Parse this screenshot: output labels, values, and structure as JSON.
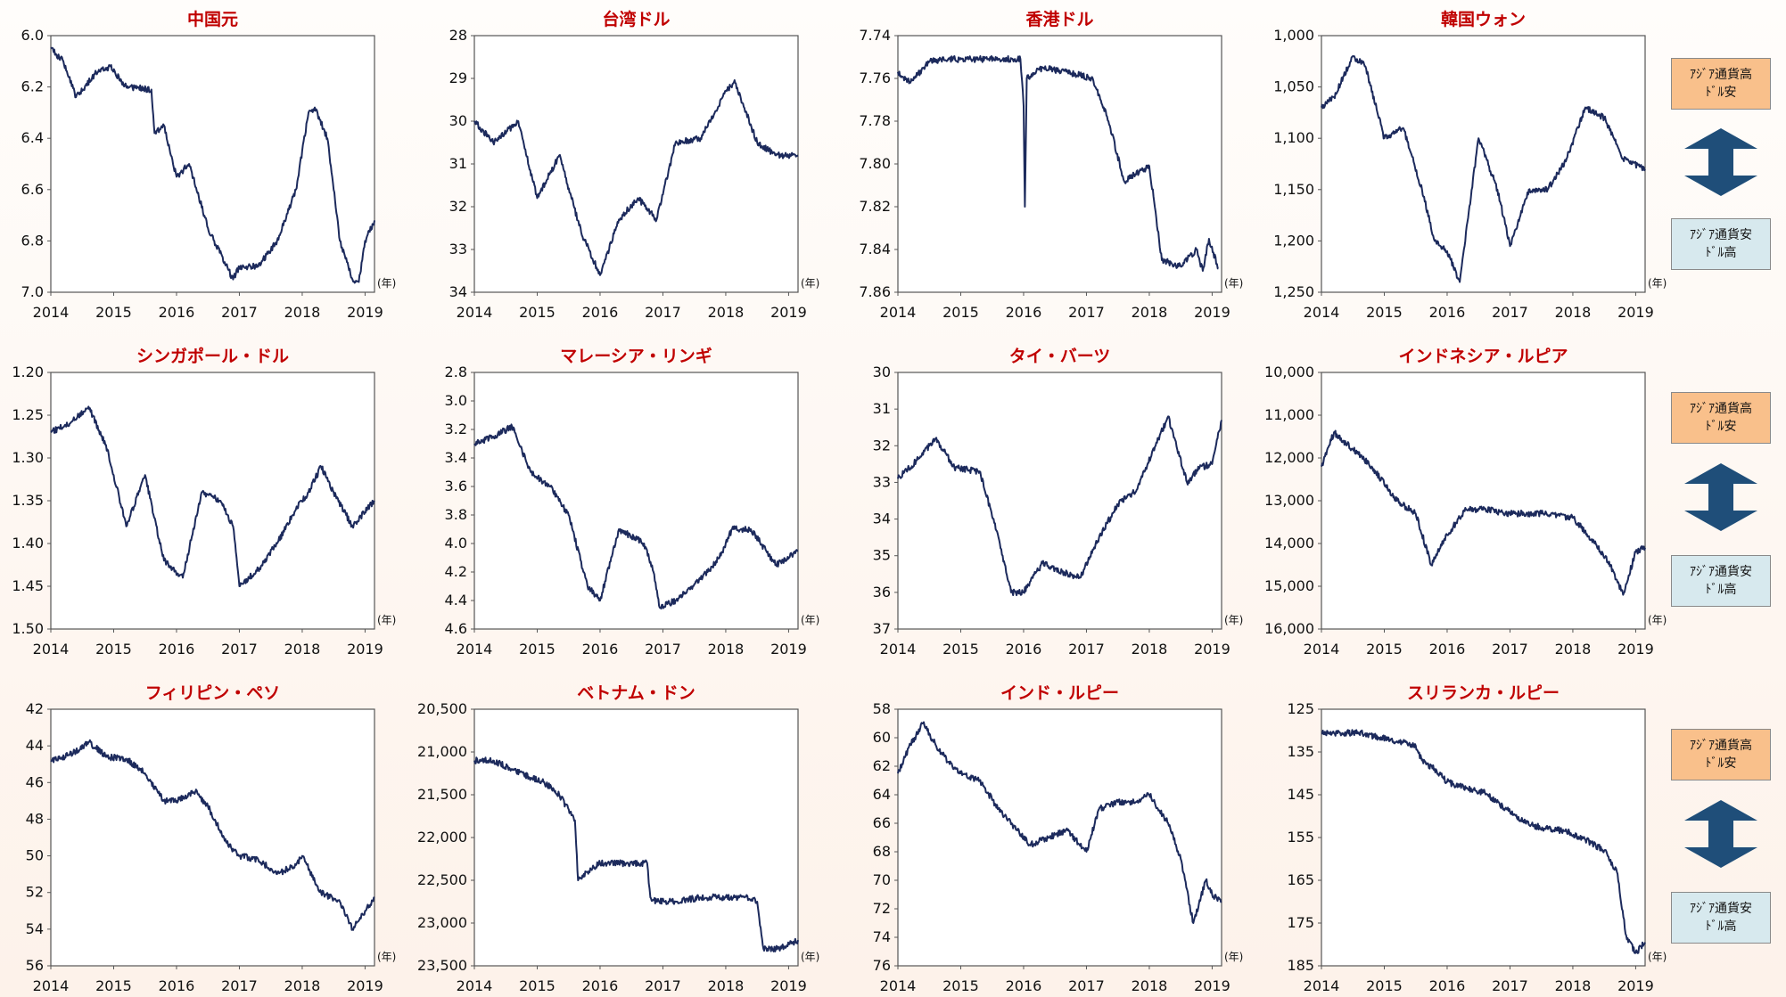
{
  "unit_label": "(年)",
  "legend": {
    "strong_label_1": "ｱｼﾞｱ通貨高",
    "strong_label_2": "ﾄﾞﾙ安",
    "weak_label_1": "ｱｼﾞｱ通貨安",
    "weak_label_2": "ﾄﾞﾙ高",
    "arrow_color": "#1f4e79",
    "strong_color": "#f9c08b",
    "weak_color": "#d7e9ee"
  },
  "line_color": "#1c2a5c",
  "title_color": "#c00000",
  "chart_data": [
    {
      "type": "line",
      "title": "中国元",
      "x": [
        2014,
        2014.2,
        2014.4,
        2014.7,
        2014.95,
        2015.2,
        2015.6,
        2015.65,
        2015.8,
        2016.0,
        2016.2,
        2016.5,
        2016.9,
        2017.0,
        2017.3,
        2017.6,
        2017.9,
        2018.1,
        2018.2,
        2018.4,
        2018.6,
        2018.8,
        2018.9,
        2019.0,
        2019.15
      ],
      "y": [
        6.05,
        6.1,
        6.24,
        6.15,
        6.12,
        6.2,
        6.21,
        6.38,
        6.35,
        6.55,
        6.5,
        6.75,
        6.95,
        6.9,
        6.9,
        6.8,
        6.6,
        6.3,
        6.28,
        6.4,
        6.8,
        6.95,
        6.96,
        6.8,
        6.72
      ],
      "ylim": [
        6.0,
        7.0
      ],
      "yticks": [
        "6.0",
        "6.2",
        "6.4",
        "6.6",
        "6.8",
        "7.0"
      ],
      "xlim": [
        2014,
        2019.15
      ],
      "xticks": [
        "2014",
        "2015",
        "2016",
        "2017",
        "2018",
        "2019"
      ],
      "inverted": true
    },
    {
      "type": "line",
      "title": "台湾ドル",
      "x": [
        2014,
        2014.3,
        2014.7,
        2015.0,
        2015.35,
        2015.7,
        2016.0,
        2016.3,
        2016.6,
        2016.9,
        2017.2,
        2017.6,
        2018.0,
        2018.15,
        2018.5,
        2018.8,
        2019.15
      ],
      "y": [
        30.0,
        30.5,
        30.0,
        31.8,
        30.8,
        32.6,
        33.6,
        32.3,
        31.8,
        32.3,
        30.5,
        30.4,
        29.3,
        29.1,
        30.5,
        30.8,
        30.8
      ],
      "ylim": [
        28,
        34
      ],
      "yticks": [
        "28",
        "29",
        "30",
        "31",
        "32",
        "33",
        "34"
      ],
      "xlim": [
        2014,
        2019.15
      ],
      "xticks": [
        "2014",
        "2015",
        "2016",
        "2017",
        "2018",
        "2019"
      ],
      "inverted": true
    },
    {
      "type": "line",
      "title": "香港ドル",
      "x": [
        2014,
        2014.2,
        2014.5,
        2014.8,
        2015.2,
        2015.6,
        2015.95,
        2016.0,
        2016.02,
        2016.05,
        2016.3,
        2016.7,
        2017.1,
        2017.35,
        2017.6,
        2018.0,
        2018.2,
        2018.5,
        2018.75,
        2018.85,
        2018.95,
        2019.1
      ],
      "y": [
        7.757,
        7.762,
        7.752,
        7.751,
        7.751,
        7.751,
        7.751,
        7.773,
        7.82,
        7.76,
        7.755,
        7.757,
        7.76,
        7.78,
        7.808,
        7.801,
        7.845,
        7.848,
        7.84,
        7.85,
        7.835,
        7.849
      ],
      "ylim": [
        7.74,
        7.86
      ],
      "yticks": [
        "7.74",
        "7.76",
        "7.78",
        "7.80",
        "7.82",
        "7.84",
        "7.86"
      ],
      "xlim": [
        2014,
        2019.15
      ],
      "xticks": [
        "2014",
        "2015",
        "2016",
        "2017",
        "2018",
        "2019"
      ],
      "inverted": true
    },
    {
      "type": "line",
      "title": "韓国ウォン",
      "x": [
        2014,
        2014.2,
        2014.5,
        2014.7,
        2015.0,
        2015.3,
        2015.6,
        2015.8,
        2016.0,
        2016.2,
        2016.5,
        2016.8,
        2017.0,
        2017.3,
        2017.6,
        2017.9,
        2018.2,
        2018.5,
        2018.8,
        2019.15
      ],
      "y": [
        1070,
        1060,
        1020,
        1030,
        1100,
        1090,
        1150,
        1200,
        1210,
        1240,
        1100,
        1150,
        1205,
        1150,
        1150,
        1120,
        1070,
        1080,
        1120,
        1130
      ],
      "ylim": [
        1000,
        1250
      ],
      "yticks": [
        "1,000",
        "1,050",
        "1,100",
        "1,150",
        "1,200",
        "1,250"
      ],
      "xlim": [
        2014,
        2019.15
      ],
      "xticks": [
        "2014",
        "2015",
        "2016",
        "2017",
        "2018",
        "2019"
      ],
      "inverted": true
    },
    {
      "type": "line",
      "title": "シンガポール・ドル",
      "x": [
        2014,
        2014.3,
        2014.6,
        2014.9,
        2015.2,
        2015.5,
        2015.8,
        2016.1,
        2016.4,
        2016.7,
        2016.9,
        2017.0,
        2017.3,
        2017.6,
        2017.9,
        2018.1,
        2018.3,
        2018.5,
        2018.8,
        2019.15
      ],
      "y": [
        1.27,
        1.26,
        1.24,
        1.29,
        1.38,
        1.32,
        1.42,
        1.44,
        1.34,
        1.35,
        1.38,
        1.45,
        1.43,
        1.4,
        1.36,
        1.34,
        1.31,
        1.34,
        1.38,
        1.35
      ],
      "ylim": [
        1.2,
        1.5
      ],
      "yticks": [
        "1.20",
        "1.25",
        "1.30",
        "1.35",
        "1.40",
        "1.45",
        "1.50"
      ],
      "xlim": [
        2014,
        2019.15
      ],
      "xticks": [
        "2014",
        "2015",
        "2016",
        "2017",
        "2018",
        "2019"
      ],
      "inverted": true
    },
    {
      "type": "line",
      "title": "マレーシア・リンギ",
      "x": [
        2014,
        2014.3,
        2014.6,
        2014.9,
        2015.2,
        2015.5,
        2015.8,
        2016.0,
        2016.3,
        2016.7,
        2016.85,
        2016.95,
        2017.2,
        2017.6,
        2017.9,
        2018.1,
        2018.4,
        2018.8,
        2019.15
      ],
      "y": [
        3.3,
        3.25,
        3.18,
        3.5,
        3.6,
        3.8,
        4.3,
        4.4,
        3.9,
        4.0,
        4.2,
        4.45,
        4.4,
        4.25,
        4.1,
        3.9,
        3.9,
        4.15,
        4.05
      ],
      "ylim": [
        2.8,
        4.6
      ],
      "yticks": [
        "2.8",
        "3.0",
        "3.2",
        "3.4",
        "3.6",
        "3.8",
        "4.0",
        "4.2",
        "4.4",
        "4.6"
      ],
      "xlim": [
        2014,
        2019.15
      ],
      "xticks": [
        "2014",
        "2015",
        "2016",
        "2017",
        "2018",
        "2019"
      ],
      "inverted": true
    },
    {
      "type": "line",
      "title": "タイ・バーツ",
      "x": [
        2014,
        2014.3,
        2014.6,
        2014.9,
        2015.3,
        2015.6,
        2015.8,
        2016.0,
        2016.3,
        2016.7,
        2016.9,
        2017.2,
        2017.5,
        2017.8,
        2018.1,
        2018.3,
        2018.6,
        2018.8,
        2019.0,
        2019.15
      ],
      "y": [
        32.9,
        32.4,
        31.8,
        32.6,
        32.7,
        34.5,
        36.0,
        36.0,
        35.2,
        35.5,
        35.6,
        34.5,
        33.6,
        33.2,
        32.0,
        31.2,
        33.0,
        32.6,
        32.5,
        31.3
      ],
      "ylim": [
        30,
        37
      ],
      "yticks": [
        "30",
        "31",
        "32",
        "33",
        "34",
        "35",
        "36",
        "37"
      ],
      "xlim": [
        2014,
        2019.15
      ],
      "xticks": [
        "2014",
        "2015",
        "2016",
        "2017",
        "2018",
        "2019"
      ],
      "inverted": true
    },
    {
      "type": "line",
      "title": "インドネシア・ルピア",
      "x": [
        2014,
        2014.2,
        2014.5,
        2014.8,
        2015.2,
        2015.5,
        2015.75,
        2016.0,
        2016.3,
        2016.6,
        2017.0,
        2017.5,
        2018.0,
        2018.3,
        2018.6,
        2018.8,
        2019.0,
        2019.15
      ],
      "y": [
        12200,
        11400,
        11800,
        12200,
        13000,
        13300,
        14500,
        13800,
        13200,
        13200,
        13300,
        13300,
        13400,
        13900,
        14500,
        15200,
        14200,
        14100
      ],
      "ylim": [
        10000,
        16000
      ],
      "yticks": [
        "10,000",
        "11,000",
        "12,000",
        "13,000",
        "14,000",
        "15,000",
        "16,000"
      ],
      "xlim": [
        2014,
        2019.15
      ],
      "xticks": [
        "2014",
        "2015",
        "2016",
        "2017",
        "2018",
        "2019"
      ],
      "inverted": true
    },
    {
      "type": "line",
      "title": "フィリピン・ペソ",
      "x": [
        2014,
        2014.3,
        2014.6,
        2014.9,
        2015.2,
        2015.5,
        2015.8,
        2016.0,
        2016.3,
        2016.5,
        2016.8,
        2017.0,
        2017.3,
        2017.6,
        2017.9,
        2018.0,
        2018.3,
        2018.6,
        2018.8,
        2019.0,
        2019.15
      ],
      "y": [
        44.8,
        44.5,
        43.8,
        44.6,
        44.7,
        45.5,
        47.0,
        47.0,
        46.5,
        47.3,
        49.3,
        50.0,
        50.2,
        51.0,
        50.5,
        50.0,
        52.0,
        52.5,
        54.0,
        53.0,
        52.3
      ],
      "ylim": [
        42,
        56
      ],
      "yticks": [
        "42",
        "44",
        "46",
        "48",
        "50",
        "52",
        "54",
        "56"
      ],
      "xlim": [
        2014,
        2019.15
      ],
      "xticks": [
        "2014",
        "2015",
        "2016",
        "2017",
        "2018",
        "2019"
      ],
      "inverted": true
    },
    {
      "type": "line",
      "title": "ベトナム・ドン",
      "x": [
        2014,
        2014.3,
        2014.6,
        2014.9,
        2015.1,
        2015.35,
        2015.6,
        2015.65,
        2015.8,
        2016.0,
        2016.3,
        2016.55,
        2016.75,
        2016.8,
        2016.9,
        2017.2,
        2017.6,
        2018.0,
        2018.3,
        2018.5,
        2018.6,
        2018.85,
        2019.15
      ],
      "y": [
        21100,
        21100,
        21200,
        21300,
        21350,
        21500,
        21800,
        22500,
        22400,
        22300,
        22300,
        22300,
        22300,
        22700,
        22750,
        22750,
        22700,
        22700,
        22700,
        22750,
        23300,
        23300,
        23200
      ],
      "ylim": [
        20500,
        23500
      ],
      "yticks": [
        "20,500",
        "21,000",
        "21,500",
        "22,000",
        "22,500",
        "23,000",
        "23,500"
      ],
      "xlim": [
        2014,
        2019.15
      ],
      "xticks": [
        "2014",
        "2015",
        "2016",
        "2017",
        "2018",
        "2019"
      ],
      "inverted": true
    },
    {
      "type": "line",
      "title": "インド・ルピー",
      "x": [
        2014,
        2014.2,
        2014.4,
        2014.6,
        2014.8,
        2015.0,
        2015.3,
        2015.6,
        2015.9,
        2016.1,
        2016.4,
        2016.7,
        2017.0,
        2017.2,
        2017.5,
        2017.8,
        2018.0,
        2018.3,
        2018.5,
        2018.7,
        2018.9,
        2019.0,
        2019.15
      ],
      "y": [
        62.5,
        60.5,
        59.0,
        60.5,
        61.7,
        62.5,
        63.0,
        65.0,
        66.5,
        67.5,
        67.0,
        66.5,
        68.0,
        65.0,
        64.5,
        64.5,
        64.0,
        66.0,
        68.5,
        73.0,
        70.0,
        71.0,
        71.5
      ],
      "ylim": [
        58,
        76
      ],
      "yticks": [
        "58",
        "60",
        "62",
        "64",
        "66",
        "68",
        "70",
        "72",
        "74",
        "76"
      ],
      "xlim": [
        2014,
        2019.15
      ],
      "xticks": [
        "2014",
        "2015",
        "2016",
        "2017",
        "2018",
        "2019"
      ],
      "inverted": true
    },
    {
      "type": "line",
      "title": "スリランカ・ルピー",
      "x": [
        2014,
        2014.3,
        2014.6,
        2014.9,
        2015.2,
        2015.5,
        2015.6,
        2015.8,
        2016.0,
        2016.3,
        2016.6,
        2017.0,
        2017.3,
        2017.6,
        2017.9,
        2018.2,
        2018.5,
        2018.7,
        2018.85,
        2019.0,
        2019.15
      ],
      "y": [
        130.7,
        130.6,
        130.5,
        131.5,
        132.5,
        133.5,
        137.0,
        139.0,
        142.0,
        143.5,
        144.5,
        149.0,
        152.0,
        153.0,
        153.5,
        155.5,
        158.0,
        163.0,
        178.0,
        182.0,
        179.5
      ],
      "ylim": [
        125,
        185
      ],
      "yticks": [
        "125",
        "135",
        "145",
        "155",
        "165",
        "175",
        "185"
      ],
      "xlim": [
        2014,
        2019.15
      ],
      "xticks": [
        "2014",
        "2015",
        "2016",
        "2017",
        "2018",
        "2019"
      ],
      "inverted": true
    }
  ]
}
